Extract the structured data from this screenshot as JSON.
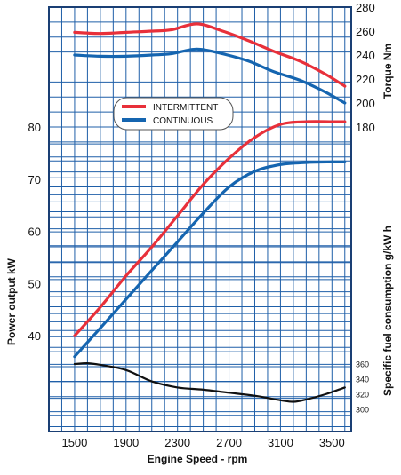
{
  "chart_data": {
    "type": "line",
    "title": "",
    "xlabel": "Engine Speed - rpm",
    "x_ticks": [
      1500,
      1900,
      2300,
      2700,
      3100,
      3500
    ],
    "xlim": [
      1300,
      3650
    ],
    "axes": {
      "power": {
        "label": "Power output kW",
        "ticks": [
          40,
          50,
          60,
          70,
          80
        ],
        "range": [
          40,
          80
        ]
      },
      "torque": {
        "label": "Torque Nm",
        "ticks": [
          180,
          200,
          220,
          240,
          260,
          280
        ],
        "range": [
          180,
          280
        ]
      },
      "fuel": {
        "label": "Specific fuel consumption g/kW h",
        "ticks": [
          300,
          320,
          340,
          360
        ],
        "range": [
          300,
          360
        ]
      }
    },
    "grid": true,
    "legend": {
      "position": "center-top",
      "entries": [
        {
          "name": "INTERMITTENT",
          "color": "#e8303a"
        },
        {
          "name": "CONTINUOUS",
          "color": "#1565b0"
        }
      ]
    },
    "series": [
      {
        "name": "INTERMITTENT",
        "quantity": "torque",
        "color": "#e8303a",
        "x": [
          1500,
          1700,
          1900,
          2100,
          2250,
          2450,
          2650,
          2850,
          3050,
          3250,
          3450,
          3600
        ],
        "y": [
          259,
          258,
          259,
          260,
          261,
          266,
          260,
          252,
          243,
          235,
          224,
          214
        ]
      },
      {
        "name": "CONTINUOUS",
        "quantity": "torque",
        "color": "#1565b0",
        "x": [
          1500,
          1700,
          1900,
          2100,
          2250,
          2450,
          2650,
          2850,
          3050,
          3250,
          3450,
          3600
        ],
        "y": [
          240,
          239,
          239,
          240,
          241,
          245,
          241,
          235,
          226,
          219,
          209,
          200
        ]
      },
      {
        "name": "INTERMITTENT",
        "quantity": "power",
        "color": "#e8303a",
        "x": [
          1500,
          1700,
          1900,
          2100,
          2300,
          2500,
          2700,
          2900,
          3100,
          3300,
          3500,
          3600
        ],
        "y": [
          40,
          45.5,
          51.5,
          57,
          63,
          69,
          74,
          78,
          80.5,
          81,
          81,
          81
        ]
      },
      {
        "name": "CONTINUOUS",
        "quantity": "power",
        "color": "#1565b0",
        "x": [
          1500,
          1700,
          1900,
          2100,
          2300,
          2500,
          2700,
          2900,
          3100,
          3300,
          3500,
          3600
        ],
        "y": [
          36,
          41.5,
          47,
          52.5,
          58,
          63.5,
          68.5,
          71.5,
          72.8,
          73.2,
          73.3,
          73.3
        ]
      },
      {
        "name": "",
        "quantity": "fuel",
        "color": "#111111",
        "x": [
          1500,
          1600,
          1700,
          1900,
          2100,
          2300,
          2500,
          2700,
          2900,
          3100,
          3200,
          3300,
          3450,
          3600
        ],
        "y": [
          360,
          361,
          359,
          352,
          337,
          329,
          326,
          322,
          318,
          312,
          310,
          313,
          320,
          329
        ]
      }
    ]
  }
}
